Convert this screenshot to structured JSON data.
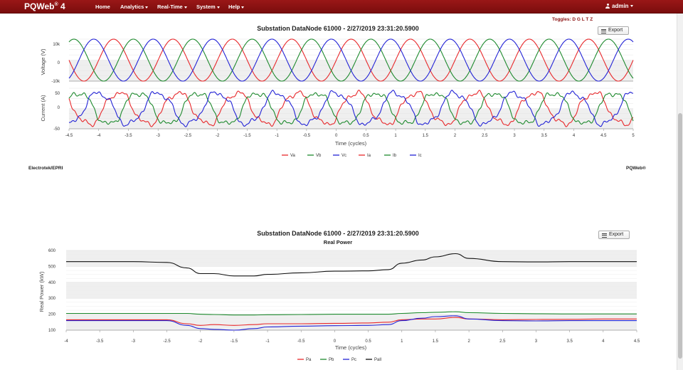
{
  "nav": {
    "brand": "PQWeb",
    "brand_sup": "®",
    "brand_version": " 4",
    "items": [
      {
        "label": "Home",
        "caret": false
      },
      {
        "label": "Analytics",
        "caret": true
      },
      {
        "label": "Real-Time",
        "caret": true
      },
      {
        "label": "System",
        "caret": true
      },
      {
        "label": "Help",
        "caret": true
      }
    ],
    "user": "admin"
  },
  "toggles_label": "Toggles: D G L T Z",
  "export_label": "Export",
  "footer": {
    "left": "Electrotek/EPRI",
    "right": "PQWeb®"
  },
  "chart1": {
    "title": "Substation DataNode 61000 - 2/27/2019 23:31:20.5900",
    "xlabel": "Time (cycles)",
    "voltage_ylabel": "Voltage (V)",
    "current_ylabel": "Current (A)",
    "voltage_ticks": [
      "10k",
      "0",
      "-10k"
    ],
    "current_ticks": [
      "50",
      "0",
      "-50"
    ],
    "xticks": [
      "-4.5",
      "-4",
      "-3.5",
      "-3",
      "-2.5",
      "-2",
      "-1.5",
      "-1",
      "-0.5",
      "0",
      "0.5",
      "1",
      "1.5",
      "2",
      "2.5",
      "3",
      "3.5",
      "4",
      "4.5",
      "5"
    ],
    "legend": [
      "Va",
      "Vb",
      "Vc",
      "Ia",
      "Ib",
      "Ic"
    ]
  },
  "chart2": {
    "title": "Substation DataNode 61000 - 2/27/2019 23:31:20.5900",
    "subtitle": "Real Power",
    "xlabel": "Time (cycles)",
    "ylabel": "Real Power (kW)",
    "yticks": [
      "600",
      "500",
      "400",
      "300",
      "200",
      "100"
    ],
    "xticks": [
      "-4",
      "-3.5",
      "-3",
      "-2.5",
      "-2",
      "-1.5",
      "-1",
      "-0.5",
      "0",
      "0.5",
      "1",
      "1.5",
      "2",
      "2.5",
      "3",
      "3.5",
      "4",
      "4.5"
    ],
    "legend": [
      "Pa",
      "Pb",
      "Pc",
      "Pall"
    ]
  },
  "colors": {
    "a": "#e8282b",
    "b": "#1e8a2e",
    "c": "#2323d6",
    "all": "#111111",
    "band": "#efefef"
  },
  "chart_data": [
    {
      "type": "line",
      "title": "Substation DataNode 61000 - 2/27/2019 23:31:20.5900",
      "xlabel": "Time (cycles)",
      "xlim": [
        -4.5,
        5
      ],
      "panels": [
        {
          "ylabel": "Voltage (V)",
          "ylim": [
            -10000,
            10000
          ],
          "series": [
            {
              "name": "Va",
              "amplitude": 10000,
              "phase_deg": 0
            },
            {
              "name": "Vb",
              "amplitude": 10000,
              "phase_deg": -120
            },
            {
              "name": "Vc",
              "amplitude": 10000,
              "phase_deg": 120
            }
          ]
        },
        {
          "ylabel": "Current (A)",
          "ylim": [
            -50,
            50
          ],
          "series": [
            {
              "name": "Ia",
              "amplitude": 40,
              "phase_deg": -30
            },
            {
              "name": "Ib",
              "amplitude": 40,
              "phase_deg": -150
            },
            {
              "name": "Ic",
              "amplitude": 40,
              "phase_deg": 90
            }
          ]
        }
      ],
      "legend": "bottom-center",
      "grid": true
    },
    {
      "type": "line",
      "title": "Substation DataNode 61000 - 2/27/2019 23:31:20.5900",
      "subtitle": "Real Power",
      "xlabel": "Time (cycles)",
      "ylabel": "Real Power (kW)",
      "xlim": [
        -4,
        4.5
      ],
      "ylim": [
        100,
        600
      ],
      "x": [
        -4,
        -3,
        -2.5,
        -2.2,
        -2,
        -1.8,
        -1.5,
        -1.2,
        -1,
        -0.5,
        0,
        0.5,
        0.8,
        1,
        1.3,
        1.5,
        1.8,
        2,
        2.5,
        3,
        3.5,
        4,
        4.5
      ],
      "series": [
        {
          "name": "Pa",
          "values": [
            165,
            165,
            165,
            140,
            130,
            135,
            130,
            135,
            140,
            140,
            143,
            145,
            150,
            165,
            170,
            170,
            180,
            170,
            165,
            167,
            168,
            170,
            170
          ]
        },
        {
          "name": "Pb",
          "values": [
            205,
            205,
            205,
            205,
            200,
            198,
            195,
            195,
            197,
            198,
            200,
            200,
            200,
            205,
            210,
            212,
            215,
            210,
            205,
            203,
            202,
            202,
            202
          ]
        },
        {
          "name": "Pc",
          "values": [
            160,
            160,
            160,
            130,
            110,
            105,
            100,
            110,
            120,
            125,
            128,
            130,
            135,
            160,
            175,
            185,
            190,
            170,
            160,
            158,
            160,
            160,
            160
          ]
        },
        {
          "name": "Pall",
          "values": [
            530,
            530,
            525,
            490,
            455,
            455,
            440,
            440,
            450,
            460,
            470,
            472,
            480,
            520,
            540,
            560,
            580,
            550,
            530,
            528,
            530,
            530,
            530
          ]
        }
      ],
      "legend": "bottom-center",
      "grid": true
    }
  ]
}
